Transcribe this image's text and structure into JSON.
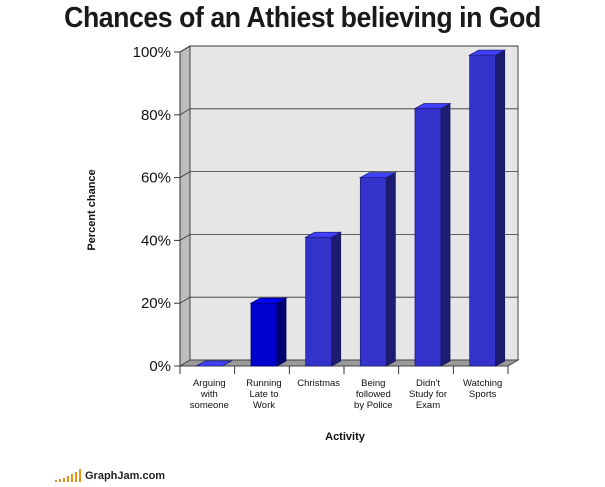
{
  "title": "Chances of an Athiest believing in God",
  "brand": {
    "name": "GraphJam.com",
    "icon": "signal-bars-icon",
    "color": "#e8921a"
  },
  "chart_data": {
    "type": "bar",
    "title": "Chances of an Athiest believing in God",
    "xlabel": "Activity",
    "ylabel": "Percent chance",
    "ylim": [
      0,
      100
    ],
    "yticks": [
      "0%",
      "20%",
      "40%",
      "60%",
      "80%",
      "100%"
    ],
    "grid": true,
    "categories": [
      [
        "Arguing",
        "with",
        "someone"
      ],
      [
        "Running",
        "Late to",
        "Work"
      ],
      [
        "Christmas"
      ],
      [
        "Being",
        "followed",
        "by Police"
      ],
      [
        "Didn't",
        "Study for",
        "Exam"
      ],
      [
        "Watching",
        "Sports"
      ]
    ],
    "values": [
      0,
      20,
      41,
      60,
      82,
      99
    ],
    "colors": [
      "#3333cc",
      "#0000cc",
      "#3333cc",
      "#3333cc",
      "#3333cc",
      "#3333cc"
    ]
  }
}
